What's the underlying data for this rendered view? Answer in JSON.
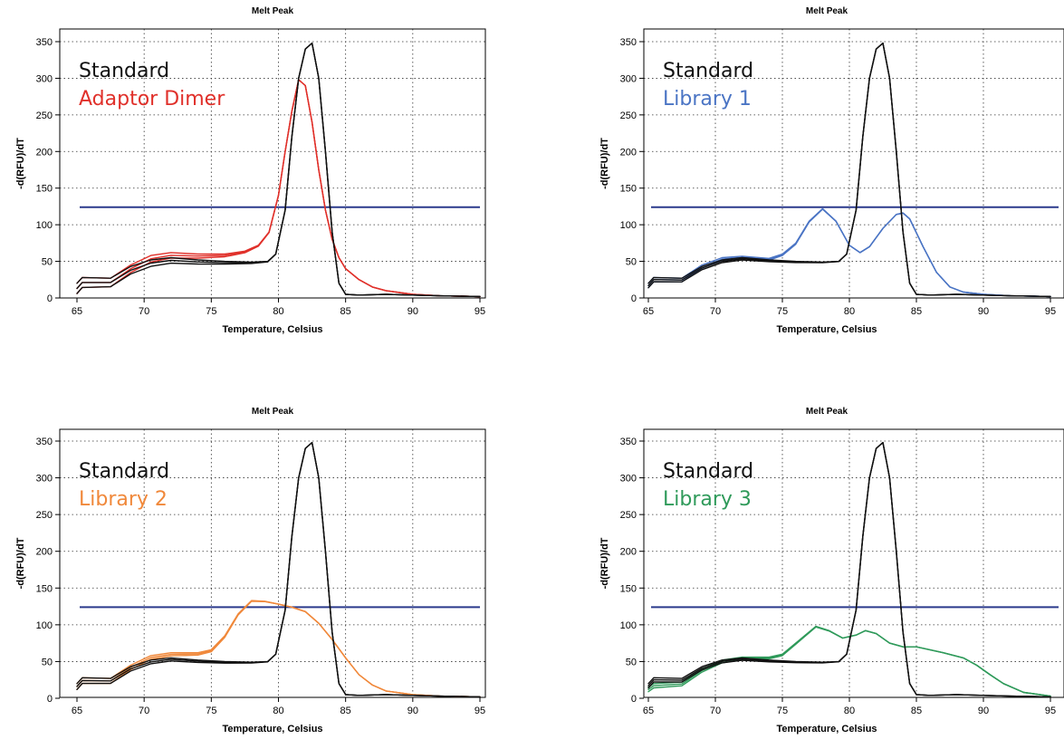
{
  "chart_data": [
    {
      "type": "line",
      "title": "Melt Peak",
      "xlabel": "Temperature, Celsius",
      "ylabel": "-d(RFU)/dT",
      "xlim": [
        65,
        95
      ],
      "ylim": [
        0,
        350
      ],
      "xticks": [
        65,
        70,
        75,
        80,
        85,
        90,
        95
      ],
      "yticks": [
        0,
        50,
        100,
        150,
        200,
        250,
        300,
        350
      ],
      "grid": true,
      "legend_placement": "top-left",
      "threshold": {
        "y": 124,
        "color": "#2b3a8c"
      },
      "legend": [
        {
          "label": "Standard",
          "color": "#111111"
        },
        {
          "label": "Adaptor Dimer",
          "color": "#e0302a"
        }
      ],
      "series": [
        {
          "role": "standard",
          "color": "#111111",
          "replicates": 3,
          "x": [
            65.0,
            65.4,
            67.5,
            69.0,
            70.5,
            72.0,
            74.0,
            76.0,
            78.0,
            79.2,
            79.8,
            80.5,
            81.0,
            81.5,
            82.0,
            82.5,
            83.0,
            83.5,
            84.0,
            84.5,
            85.0,
            86.0,
            88.0,
            90.0,
            92.0,
            95.0
          ],
          "values": [
            20,
            28,
            27,
            43,
            52,
            55,
            52,
            50,
            49,
            50,
            60,
            120,
            220,
            300,
            340,
            348,
            300,
            200,
            90,
            20,
            5,
            4,
            5,
            4,
            3,
            2
          ]
        },
        {
          "role": "sample",
          "color": "#e0302a",
          "replicates": 3,
          "x": [
            65.0,
            65.4,
            67.5,
            69.0,
            70.5,
            72.0,
            74.0,
            76.0,
            77.5,
            78.5,
            79.3,
            80.0,
            80.5,
            81.0,
            81.5,
            82.0,
            82.5,
            83.0,
            83.5,
            84.0,
            84.5,
            85.0,
            86.0,
            87.0,
            88.0,
            90.0,
            92.0,
            95.0
          ],
          "values": [
            20,
            28,
            27,
            45,
            58,
            62,
            60,
            60,
            64,
            72,
            90,
            140,
            200,
            255,
            298,
            290,
            240,
            175,
            120,
            80,
            55,
            40,
            25,
            15,
            10,
            5,
            3,
            2
          ]
        }
      ]
    },
    {
      "type": "line",
      "title": "Melt Peak",
      "xlabel": "Temperature, Celsius",
      "ylabel": "-d(RFU)/dT",
      "xlim": [
        65,
        95
      ],
      "ylim": [
        0,
        350
      ],
      "xticks": [
        65,
        70,
        75,
        80,
        85,
        90,
        95
      ],
      "yticks": [
        0,
        50,
        100,
        150,
        200,
        250,
        300,
        350
      ],
      "grid": true,
      "legend_placement": "top-left",
      "threshold": {
        "y": 124,
        "color": "#2b3a8c"
      },
      "legend": [
        {
          "label": "Standard",
          "color": "#111111"
        },
        {
          "label": "Library 1",
          "color": "#4a74c4"
        }
      ],
      "series": [
        {
          "role": "standard",
          "color": "#111111",
          "replicates": 3,
          "x": [
            65.0,
            65.4,
            67.5,
            69.0,
            70.5,
            72.0,
            74.0,
            76.0,
            78.0,
            79.2,
            79.8,
            80.5,
            81.0,
            81.5,
            82.0,
            82.5,
            83.0,
            83.5,
            84.0,
            84.5,
            85.0,
            86.0,
            88.0,
            90.0,
            92.0,
            95.0
          ],
          "values": [
            20,
            28,
            27,
            43,
            52,
            55,
            52,
            50,
            49,
            50,
            60,
            120,
            220,
            300,
            340,
            348,
            300,
            200,
            90,
            20,
            5,
            4,
            5,
            4,
            3,
            2
          ]
        },
        {
          "role": "sample",
          "color": "#4a74c4",
          "replicates": 3,
          "x": [
            65.0,
            65.4,
            67.5,
            69.0,
            70.5,
            72.0,
            74.0,
            75.0,
            76.0,
            77.0,
            78.0,
            79.0,
            80.0,
            80.8,
            81.5,
            82.5,
            83.5,
            84.0,
            84.5,
            85.5,
            86.5,
            87.5,
            88.5,
            90.0,
            92.0,
            95.0
          ],
          "values": [
            20,
            28,
            27,
            45,
            55,
            57,
            54,
            60,
            75,
            105,
            122,
            105,
            72,
            62,
            70,
            95,
            114,
            116,
            108,
            70,
            35,
            15,
            8,
            5,
            3,
            2
          ]
        }
      ]
    },
    {
      "type": "line",
      "title": "Melt Peak",
      "xlabel": "Temperature, Celsius",
      "ylabel": "-d(RFU)/dT",
      "xlim": [
        65,
        95
      ],
      "ylim": [
        0,
        350
      ],
      "xticks": [
        65,
        70,
        75,
        80,
        85,
        90,
        95
      ],
      "yticks": [
        0,
        50,
        100,
        150,
        200,
        250,
        300,
        350
      ],
      "grid": true,
      "legend_placement": "top-left",
      "threshold": {
        "y": 124,
        "color": "#2b3a8c"
      },
      "legend": [
        {
          "label": "Standard",
          "color": "#111111"
        },
        {
          "label": "Library 2",
          "color": "#f0883a"
        }
      ],
      "series": [
        {
          "role": "standard",
          "color": "#111111",
          "replicates": 3,
          "x": [
            65.0,
            65.4,
            67.5,
            69.0,
            70.5,
            72.0,
            74.0,
            76.0,
            78.0,
            79.2,
            79.8,
            80.5,
            81.0,
            81.5,
            82.0,
            82.5,
            83.0,
            83.5,
            84.0,
            84.5,
            85.0,
            86.0,
            88.0,
            90.0,
            92.0,
            95.0
          ],
          "values": [
            20,
            28,
            27,
            43,
            52,
            55,
            52,
            50,
            49,
            50,
            60,
            120,
            220,
            300,
            340,
            348,
            300,
            200,
            90,
            20,
            5,
            4,
            5,
            4,
            3,
            2
          ]
        },
        {
          "role": "sample",
          "color": "#f0883a",
          "replicates": 3,
          "x": [
            65.0,
            65.4,
            67.5,
            69.0,
            70.5,
            72.0,
            74.0,
            75.0,
            76.0,
            77.0,
            78.0,
            79.0,
            80.0,
            81.0,
            82.0,
            83.0,
            84.0,
            85.0,
            86.0,
            87.0,
            88.0,
            90.0,
            92.0,
            95.0
          ],
          "values": [
            20,
            28,
            27,
            45,
            58,
            62,
            62,
            66,
            85,
            115,
            133,
            132,
            128,
            124,
            118,
            102,
            80,
            55,
            32,
            18,
            10,
            5,
            3,
            2
          ]
        }
      ]
    },
    {
      "type": "line",
      "title": "Melt Peak",
      "xlabel": "Temperature, Celsius",
      "ylabel": "-d(RFU)/dT",
      "xlim": [
        65,
        95
      ],
      "ylim": [
        0,
        350
      ],
      "xticks": [
        65,
        70,
        75,
        80,
        85,
        90,
        95
      ],
      "yticks": [
        0,
        50,
        100,
        150,
        200,
        250,
        300,
        350
      ],
      "grid": true,
      "legend_placement": "top-left",
      "threshold": {
        "y": 124,
        "color": "#2b3a8c"
      },
      "legend": [
        {
          "label": "Standard",
          "color": "#111111"
        },
        {
          "label": "Library 3",
          "color": "#2f9a5a"
        }
      ],
      "series": [
        {
          "role": "standard",
          "color": "#111111",
          "replicates": 3,
          "x": [
            65.0,
            65.4,
            67.5,
            69.0,
            70.5,
            72.0,
            74.0,
            76.0,
            78.0,
            79.2,
            79.8,
            80.5,
            81.0,
            81.5,
            82.0,
            82.5,
            83.0,
            83.5,
            84.0,
            84.5,
            85.0,
            86.0,
            88.0,
            90.0,
            92.0,
            95.0
          ],
          "values": [
            20,
            28,
            27,
            43,
            52,
            55,
            52,
            50,
            49,
            50,
            60,
            120,
            220,
            300,
            340,
            348,
            300,
            200,
            90,
            20,
            5,
            4,
            5,
            4,
            3,
            2
          ]
        },
        {
          "role": "sample",
          "color": "#2f9a5a",
          "replicates": 3,
          "x": [
            65.0,
            65.4,
            67.5,
            69.0,
            70.5,
            72.0,
            74.0,
            75.0,
            76.0,
            77.5,
            78.5,
            79.5,
            80.5,
            81.2,
            82.0,
            83.0,
            84.0,
            85.0,
            87.0,
            88.5,
            89.5,
            90.5,
            91.5,
            93.0,
            95.0
          ],
          "values": [
            15,
            20,
            22,
            40,
            52,
            56,
            56,
            60,
            75,
            98,
            92,
            82,
            86,
            92,
            88,
            75,
            70,
            70,
            62,
            55,
            45,
            32,
            20,
            8,
            3
          ]
        }
      ]
    }
  ]
}
